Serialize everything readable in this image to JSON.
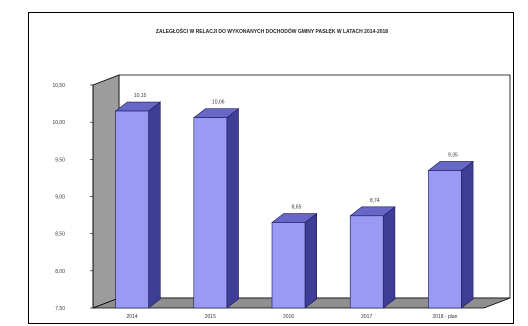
{
  "chart_data": {
    "type": "bar",
    "title": "ZALEGŁOŚCI W RELACJI DO WYKONANYCH DOCHODÓW GMINY PASŁĘK W LATACH 2014-2018",
    "xlabel": "",
    "ylabel": "",
    "categories": [
      "2014",
      "2015",
      "2016",
      "2017",
      "2018 - plan"
    ],
    "values": [
      10.15,
      10.06,
      8.65,
      8.74,
      9.35
    ],
    "value_labels": [
      "10,15",
      "10,06",
      "8,65",
      "8,74",
      "9,35"
    ],
    "ylim": [
      7.5,
      10.5
    ],
    "yticks": [
      7.5,
      8.0,
      8.5,
      9.0,
      9.5,
      10.0,
      10.5
    ],
    "ytick_labels": [
      "7,50",
      "8,00",
      "8,50",
      "9,00",
      "9,50",
      "10,00",
      "10,50"
    ],
    "grid": false,
    "three_d": true,
    "colors": {
      "bar_front": "#9a9af5",
      "bar_side": "#3e3e96",
      "bar_top": "#6767c8",
      "bar_stroke": "#1a1a5a",
      "wall_back": "#ffffff",
      "wall_side": "#9c9c9c",
      "floor": "#8f8f8f",
      "axis": "#000000"
    }
  }
}
